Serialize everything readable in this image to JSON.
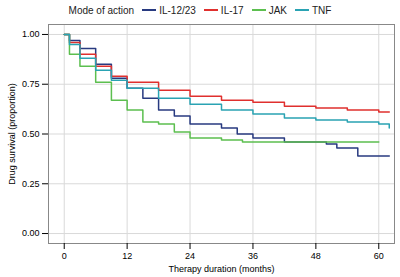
{
  "chart_data": {
    "type": "line",
    "legend_title": "Mode of action",
    "legend": "top",
    "x_label": "Therapy duration (months)",
    "y_label": "Drug survival (proportion)",
    "xlim": [
      -3,
      63
    ],
    "xticks": [
      0,
      12,
      24,
      36,
      48,
      60
    ],
    "ylim": [
      -0.05,
      1.05
    ],
    "yticks": [
      {
        "value": 0,
        "label": "0.00"
      },
      {
        "value": 0.25,
        "label": "0.25"
      },
      {
        "value": 0.5,
        "label": "0.50"
      },
      {
        "value": 0.75,
        "label": "0.75"
      },
      {
        "value": 1,
        "label": "1.00"
      }
    ],
    "grid": true,
    "line_style": "step",
    "series": [
      {
        "name": "IL-12/23",
        "color": "#283a80",
        "x": [
          0,
          1,
          3,
          6,
          9,
          12,
          15,
          18,
          21,
          24,
          30,
          33,
          36,
          42,
          50,
          52,
          56,
          62
        ],
        "values": [
          1.0,
          0.97,
          0.93,
          0.85,
          0.78,
          0.73,
          0.68,
          0.62,
          0.59,
          0.55,
          0.53,
          0.5,
          0.48,
          0.46,
          0.45,
          0.43,
          0.39,
          0.39
        ]
      },
      {
        "name": "IL-17",
        "color": "#e0302e",
        "x": [
          0,
          1,
          3,
          6,
          9,
          12,
          18,
          24,
          30,
          36,
          42,
          48,
          54,
          60,
          62
        ],
        "values": [
          1.0,
          0.96,
          0.9,
          0.84,
          0.79,
          0.76,
          0.72,
          0.69,
          0.67,
          0.66,
          0.64,
          0.63,
          0.62,
          0.61,
          0.61
        ]
      },
      {
        "name": "JAK",
        "color": "#5cbf4f",
        "x": [
          0,
          1,
          3,
          6,
          9,
          12,
          15,
          18,
          21,
          24,
          30,
          34,
          60
        ],
        "values": [
          1.0,
          0.9,
          0.84,
          0.76,
          0.67,
          0.62,
          0.56,
          0.55,
          0.51,
          0.48,
          0.47,
          0.46,
          0.46
        ]
      },
      {
        "name": "TNF",
        "color": "#2aa3b3",
        "x": [
          0,
          1,
          3,
          6,
          9,
          12,
          18,
          24,
          30,
          36,
          42,
          48,
          54,
          60,
          62
        ],
        "values": [
          1.0,
          0.95,
          0.88,
          0.82,
          0.77,
          0.73,
          0.68,
          0.65,
          0.62,
          0.6,
          0.58,
          0.57,
          0.56,
          0.55,
          0.53
        ]
      }
    ]
  }
}
